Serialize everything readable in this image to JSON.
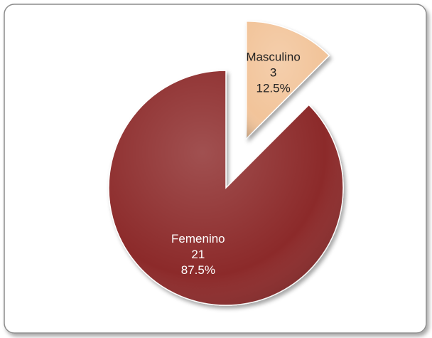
{
  "chart_data": {
    "type": "pie",
    "categories": [
      "Masculino",
      "Femenino"
    ],
    "values": [
      3,
      21
    ],
    "shares": [
      12.5,
      87.5
    ],
    "share_labels": [
      "12.5%",
      "87.5%"
    ],
    "colors": [
      "#f2c49a",
      "#8c2b2b"
    ],
    "label_colors": [
      "#222222",
      "#ffffff"
    ],
    "exploded": [
      true,
      false
    ]
  }
}
